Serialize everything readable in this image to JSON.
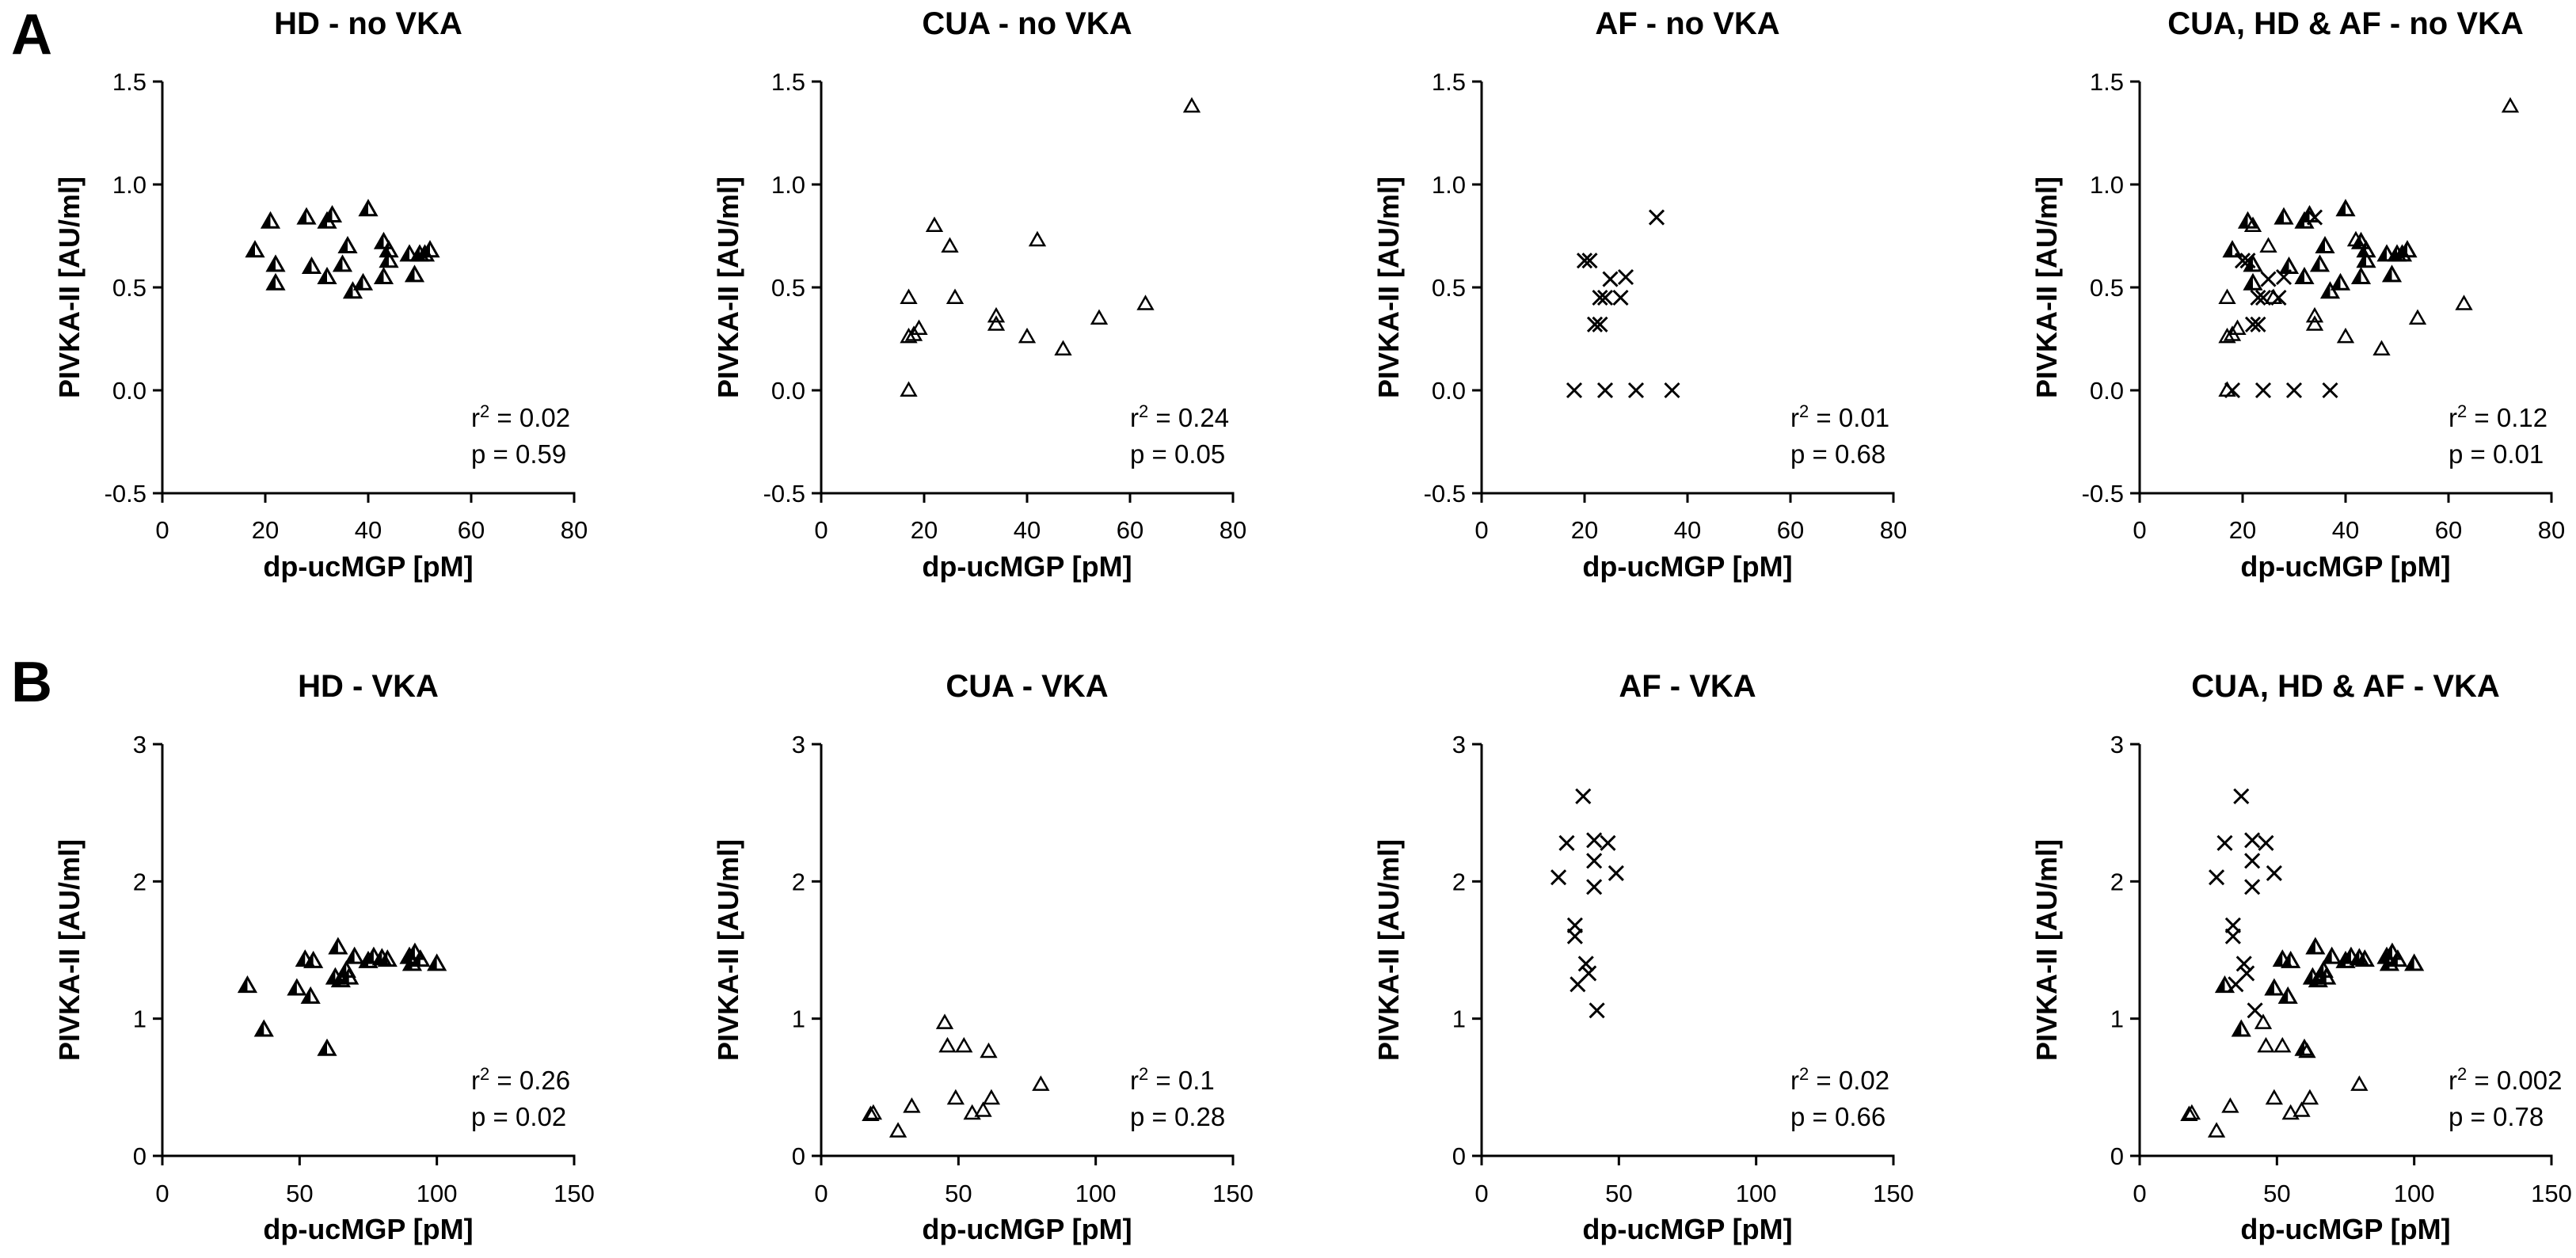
{
  "panel_labels": [
    "A",
    "B"
  ],
  "chart_data": [
    {
      "type": "scatter",
      "row": "A",
      "title": "HD - no VKA",
      "xlabel": "dp-ucMGP [pM]",
      "ylabel": "PIVKA-II [AU/ml]",
      "xlim": [
        0,
        80
      ],
      "ylim": [
        -0.5,
        1.5
      ],
      "xticks": [
        "0",
        "20",
        "40",
        "60",
        "80"
      ],
      "yticks": [
        "-0.5",
        "0.0",
        "0.5",
        "1.0",
        "1.5"
      ],
      "stat_r2": "0.02",
      "stat_p": "p = 0.59",
      "series": [
        {
          "name": "HD",
          "marker": "filled-triangle",
          "points": [
            [
              18,
              0.68
            ],
            [
              21,
              0.82
            ],
            [
              22,
              0.61
            ],
            [
              22,
              0.52
            ],
            [
              28,
              0.84
            ],
            [
              29,
              0.6
            ],
            [
              32,
              0.55
            ],
            [
              32,
              0.82
            ],
            [
              33,
              0.85
            ],
            [
              35,
              0.61
            ],
            [
              36,
              0.7
            ],
            [
              37,
              0.48
            ],
            [
              39,
              0.52
            ],
            [
              40,
              0.88
            ],
            [
              43,
              0.55
            ],
            [
              43,
              0.72
            ],
            [
              44,
              0.68
            ],
            [
              44,
              0.63
            ],
            [
              48,
              0.66
            ],
            [
              49,
              0.56
            ],
            [
              50,
              0.66
            ],
            [
              51,
              0.66
            ],
            [
              52,
              0.68
            ]
          ]
        }
      ]
    },
    {
      "type": "scatter",
      "row": "A",
      "title": "CUA - no VKA",
      "xlabel": "dp-ucMGP [pM]",
      "ylabel": "PIVKA-II [AU/ml]",
      "xlim": [
        0,
        80
      ],
      "ylim": [
        -0.5,
        1.5
      ],
      "xticks": [
        "0",
        "20",
        "40",
        "60",
        "80"
      ],
      "yticks": [
        "-0.5",
        "0.0",
        "0.5",
        "1.0",
        "1.5"
      ],
      "stat_r2": "0.24",
      "stat_p": "p = 0.05",
      "series": [
        {
          "name": "CUA",
          "marker": "open-triangle",
          "points": [
            [
              17,
              0.0
            ],
            [
              17,
              0.45
            ],
            [
              17,
              0.26
            ],
            [
              18,
              0.27
            ],
            [
              19,
              0.3
            ],
            [
              22,
              0.8
            ],
            [
              25,
              0.7
            ],
            [
              26,
              0.45
            ],
            [
              34,
              0.32
            ],
            [
              34,
              0.36
            ],
            [
              40,
              0.26
            ],
            [
              42,
              0.73
            ],
            [
              47,
              0.2
            ],
            [
              54,
              0.35
            ],
            [
              63,
              0.42
            ],
            [
              72,
              1.38
            ]
          ]
        }
      ]
    },
    {
      "type": "scatter",
      "row": "A",
      "title": "AF - no VKA",
      "xlabel": "dp-ucMGP [pM]",
      "ylabel": "PIVKA-II [AU/ml]",
      "xlim": [
        0,
        80
      ],
      "ylim": [
        -0.5,
        1.5
      ],
      "xticks": [
        "0",
        "20",
        "40",
        "60",
        "80"
      ],
      "yticks": [
        "-0.5",
        "0.0",
        "0.5",
        "1.0",
        "1.5"
      ],
      "stat_r2": "0.01",
      "stat_p": "p = 0.68",
      "series": [
        {
          "name": "AF",
          "marker": "cross",
          "points": [
            [
              18,
              0.0
            ],
            [
              20,
              0.63
            ],
            [
              21,
              0.63
            ],
            [
              22,
              0.32
            ],
            [
              23,
              0.32
            ],
            [
              23,
              0.45
            ],
            [
              24,
              0.0
            ],
            [
              24,
              0.45
            ],
            [
              25,
              0.54
            ],
            [
              27,
              0.45
            ],
            [
              28,
              0.55
            ],
            [
              30,
              0.0
            ],
            [
              34,
              0.84
            ],
            [
              37,
              0.0
            ]
          ]
        }
      ]
    },
    {
      "type": "scatter",
      "row": "A",
      "title": "CUA, HD & AF - no VKA",
      "xlabel": "dp-ucMGP [pM]",
      "ylabel": "PIVKA-II [AU/ml]",
      "xlim": [
        0,
        80
      ],
      "ylim": [
        -0.5,
        1.5
      ],
      "xticks": [
        "0",
        "20",
        "40",
        "60",
        "80"
      ],
      "yticks": [
        "-0.5",
        "0.0",
        "0.5",
        "1.0",
        "1.5"
      ],
      "stat_r2": "0.12",
      "stat_p": "p = 0.01",
      "series": [
        {
          "name": "HD",
          "marker": "filled-triangle",
          "points": [
            [
              18,
              0.68
            ],
            [
              21,
              0.82
            ],
            [
              22,
              0.61
            ],
            [
              22,
              0.52
            ],
            [
              28,
              0.84
            ],
            [
              29,
              0.6
            ],
            [
              32,
              0.55
            ],
            [
              32,
              0.82
            ],
            [
              33,
              0.85
            ],
            [
              35,
              0.61
            ],
            [
              36,
              0.7
            ],
            [
              37,
              0.48
            ],
            [
              39,
              0.52
            ],
            [
              40,
              0.88
            ],
            [
              43,
              0.55
            ],
            [
              43,
              0.72
            ],
            [
              44,
              0.68
            ],
            [
              44,
              0.63
            ],
            [
              48,
              0.66
            ],
            [
              49,
              0.56
            ],
            [
              50,
              0.66
            ],
            [
              51,
              0.66
            ],
            [
              52,
              0.68
            ]
          ]
        },
        {
          "name": "CUA",
          "marker": "open-triangle",
          "points": [
            [
              17,
              0.0
            ],
            [
              17,
              0.45
            ],
            [
              17,
              0.26
            ],
            [
              18,
              0.27
            ],
            [
              19,
              0.3
            ],
            [
              22,
              0.8
            ],
            [
              25,
              0.7
            ],
            [
              26,
              0.45
            ],
            [
              34,
              0.32
            ],
            [
              34,
              0.36
            ],
            [
              40,
              0.26
            ],
            [
              42,
              0.73
            ],
            [
              47,
              0.2
            ],
            [
              54,
              0.35
            ],
            [
              63,
              0.42
            ],
            [
              72,
              1.38
            ]
          ]
        },
        {
          "name": "AF",
          "marker": "cross",
          "points": [
            [
              18,
              0.0
            ],
            [
              20,
              0.63
            ],
            [
              21,
              0.63
            ],
            [
              22,
              0.32
            ],
            [
              23,
              0.32
            ],
            [
              23,
              0.45
            ],
            [
              24,
              0.0
            ],
            [
              24,
              0.45
            ],
            [
              25,
              0.54
            ],
            [
              27,
              0.45
            ],
            [
              28,
              0.55
            ],
            [
              30,
              0.0
            ],
            [
              34,
              0.84
            ],
            [
              37,
              0.0
            ]
          ]
        }
      ]
    },
    {
      "type": "scatter",
      "row": "B",
      "title": "HD - VKA",
      "xlabel": "dp-ucMGP [pM]",
      "ylabel": "PIVKA-II [AU/ml]",
      "xlim": [
        0,
        150
      ],
      "ylim": [
        0,
        3
      ],
      "xticks": [
        "0",
        "50",
        "100",
        "150"
      ],
      "yticks": [
        "0",
        "1",
        "2",
        "3"
      ],
      "stat_r2": "0.26",
      "stat_p": "p = 0.02",
      "series": [
        {
          "name": "HD",
          "marker": "filled-triangle",
          "points": [
            [
              31,
              1.24
            ],
            [
              37,
              0.92
            ],
            [
              49,
              1.22
            ],
            [
              52,
              1.43
            ],
            [
              54,
              1.16
            ],
            [
              55,
              1.42
            ],
            [
              60,
              0.78
            ],
            [
              63,
              1.3
            ],
            [
              64,
              1.52
            ],
            [
              65,
              1.28
            ],
            [
              67,
              1.35
            ],
            [
              68,
              1.3
            ],
            [
              70,
              1.45
            ],
            [
              75,
              1.42
            ],
            [
              77,
              1.45
            ],
            [
              80,
              1.44
            ],
            [
              82,
              1.43
            ],
            [
              90,
              1.45
            ],
            [
              91,
              1.4
            ],
            [
              92,
              1.48
            ],
            [
              94,
              1.43
            ],
            [
              100,
              1.4
            ]
          ]
        }
      ]
    },
    {
      "type": "scatter",
      "row": "B",
      "title": "CUA - VKA",
      "xlabel": "dp-ucMGP [pM]",
      "ylabel": "PIVKA-II [AU/ml]",
      "xlim": [
        0,
        150
      ],
      "ylim": [
        0,
        3
      ],
      "xticks": [
        "0",
        "50",
        "100",
        "150"
      ],
      "yticks": [
        "0",
        "1",
        "2",
        "3"
      ],
      "stat_r2": "0.1",
      "stat_p": "p = 0.28",
      "series": [
        {
          "name": "CUA",
          "marker": "open-triangle",
          "points": [
            [
              18,
              0.3
            ],
            [
              19,
              0.31
            ],
            [
              28,
              0.18
            ],
            [
              33,
              0.36
            ],
            [
              45,
              0.97
            ],
            [
              46,
              0.8
            ],
            [
              49,
              0.42
            ],
            [
              52,
              0.8
            ],
            [
              55,
              0.31
            ],
            [
              59,
              0.33
            ],
            [
              61,
              0.76
            ],
            [
              62,
              0.42
            ],
            [
              80,
              0.52
            ]
          ]
        }
      ]
    },
    {
      "type": "scatter",
      "row": "B",
      "title": "AF - VKA",
      "xlabel": "dp-ucMGP [pM]",
      "ylabel": "PIVKA-II [AU/ml]",
      "xlim": [
        0,
        150
      ],
      "ylim": [
        0,
        3
      ],
      "xticks": [
        "0",
        "50",
        "100",
        "150"
      ],
      "yticks": [
        "0",
        "1",
        "2",
        "3"
      ],
      "stat_r2": "0.02",
      "stat_p": "p = 0.66",
      "series": [
        {
          "name": "AF",
          "marker": "cross",
          "points": [
            [
              28,
              2.03
            ],
            [
              31,
              2.28
            ],
            [
              34,
              1.68
            ],
            [
              34,
              1.6
            ],
            [
              35,
              1.25
            ],
            [
              37,
              2.62
            ],
            [
              38,
              1.4
            ],
            [
              39,
              1.33
            ],
            [
              41,
              2.15
            ],
            [
              41,
              2.3
            ],
            [
              41,
              1.96
            ],
            [
              42,
              1.06
            ],
            [
              46,
              2.28
            ],
            [
              49,
              2.06
            ]
          ]
        }
      ]
    },
    {
      "type": "scatter",
      "row": "B",
      "title": "CUA, HD & AF - VKA",
      "xlabel": "dp-ucMGP [pM]",
      "ylabel": "PIVKA-II [AU/ml]",
      "xlim": [
        0,
        150
      ],
      "ylim": [
        0,
        3
      ],
      "xticks": [
        "0",
        "50",
        "100",
        "150"
      ],
      "yticks": [
        "0",
        "1",
        "2",
        "3"
      ],
      "stat_r2": "0.002",
      "stat_p": "p = 0.78",
      "series": [
        {
          "name": "HD",
          "marker": "filled-triangle",
          "points": [
            [
              31,
              1.24
            ],
            [
              37,
              0.92
            ],
            [
              49,
              1.22
            ],
            [
              52,
              1.43
            ],
            [
              54,
              1.16
            ],
            [
              55,
              1.42
            ],
            [
              60,
              0.78
            ],
            [
              63,
              1.3
            ],
            [
              64,
              1.52
            ],
            [
              65,
              1.28
            ],
            [
              67,
              1.35
            ],
            [
              68,
              1.3
            ],
            [
              70,
              1.45
            ],
            [
              75,
              1.42
            ],
            [
              77,
              1.45
            ],
            [
              80,
              1.44
            ],
            [
              82,
              1.43
            ],
            [
              90,
              1.45
            ],
            [
              91,
              1.4
            ],
            [
              92,
              1.48
            ],
            [
              94,
              1.43
            ],
            [
              100,
              1.4
            ]
          ]
        },
        {
          "name": "CUA",
          "marker": "open-triangle",
          "points": [
            [
              18,
              0.3
            ],
            [
              19,
              0.31
            ],
            [
              28,
              0.18
            ],
            [
              33,
              0.36
            ],
            [
              45,
              0.97
            ],
            [
              46,
              0.8
            ],
            [
              49,
              0.42
            ],
            [
              52,
              0.8
            ],
            [
              55,
              0.31
            ],
            [
              59,
              0.33
            ],
            [
              61,
              0.76
            ],
            [
              62,
              0.42
            ],
            [
              80,
              0.52
            ]
          ]
        },
        {
          "name": "AF",
          "marker": "cross",
          "points": [
            [
              28,
              2.03
            ],
            [
              31,
              2.28
            ],
            [
              34,
              1.68
            ],
            [
              34,
              1.6
            ],
            [
              35,
              1.25
            ],
            [
              37,
              2.62
            ],
            [
              38,
              1.4
            ],
            [
              39,
              1.33
            ],
            [
              41,
              2.15
            ],
            [
              41,
              2.3
            ],
            [
              41,
              1.96
            ],
            [
              42,
              1.06
            ],
            [
              46,
              2.28
            ],
            [
              49,
              2.06
            ]
          ]
        }
      ]
    }
  ]
}
